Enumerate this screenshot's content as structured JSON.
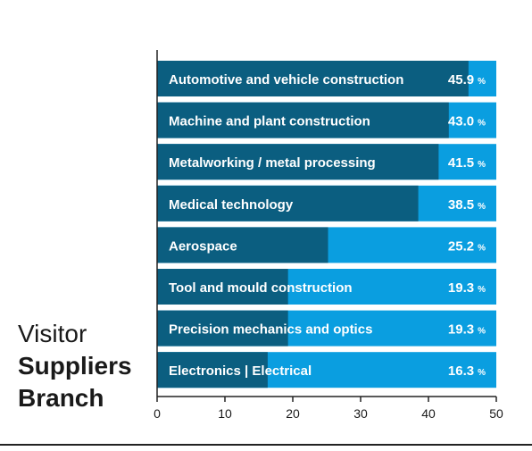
{
  "side_title": {
    "line1": "Visitor",
    "line2": "Suppliers",
    "line3": "Branch"
  },
  "colors": {
    "bar_dark": "#0b5e80",
    "bar_light": "#0a9ee0",
    "label_text": "#ffffff",
    "axis": "#222222"
  },
  "chart_data": {
    "type": "bar",
    "orientation": "horizontal",
    "categories": [
      "Automotive and vehicle construction",
      "Machine and plant construction",
      "Metalworking / metal processing",
      "Medical technology",
      "Aerospace",
      "Tool and mould construction",
      "Precision mechanics and optics",
      "Electronics | Electrical"
    ],
    "values": [
      45.9,
      43.0,
      41.5,
      38.5,
      25.2,
      19.3,
      19.3,
      16.3
    ],
    "value_labels": [
      "45.9",
      "43.0",
      "41.5",
      "38.5",
      "25.2",
      "19.3",
      "19.3",
      "16.3"
    ],
    "unit": "%",
    "xlim": [
      0,
      50
    ],
    "xticks": [
      0,
      10,
      20,
      30,
      40,
      50
    ],
    "background_bar_value": 50,
    "grid": false,
    "legend": "none"
  }
}
